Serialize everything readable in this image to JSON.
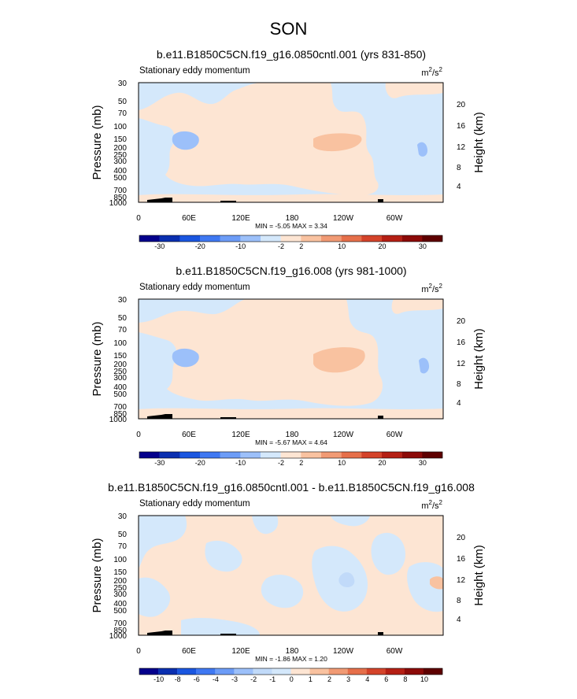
{
  "figure_title": "SON",
  "chart_data": [
    {
      "type": "heatmap",
      "title": "b.e11.B1850C5CN.f19_g16.0850cntl.001 (yrs 831-850)",
      "subtitle": "Stationary eddy momentum",
      "units_base": "m",
      "units_exp1": "2",
      "units_mid": "/s",
      "units_exp2": "2",
      "ylabel": "Pressure (mb)",
      "ylabel_right": "Height (km)",
      "x_ticks": [
        "0",
        "60E",
        "120E",
        "180",
        "120W",
        "60W"
      ],
      "y_ticks": [
        "30",
        "50",
        "70",
        "100",
        "150",
        "200",
        "250",
        "300",
        "400",
        "500",
        "700",
        "850",
        "1000"
      ],
      "height_ticks": [
        "20",
        "16",
        "12",
        "8",
        "4"
      ],
      "min_label": "MIN =",
      "min_value": "-5.05",
      "max_label": "MAX =",
      "max_value": "3.34",
      "colorbar_labels": [
        "-30",
        "-20",
        "-10",
        "-2",
        "2",
        "10",
        "20",
        "30"
      ],
      "colorbar_colors": [
        "#04008c",
        "#0a2fb0",
        "#1a56e0",
        "#3f78f2",
        "#6c9cf7",
        "#9cc0fa",
        "#d4e8fb",
        "#fde5d3",
        "#f9c2a0",
        "#f19a74",
        "#e66f4a",
        "#d4432a",
        "#b51f14",
        "#8c0a08",
        "#5e0000"
      ]
    },
    {
      "type": "heatmap",
      "title": "b.e11.B1850C5CN.f19_g16.008 (yrs 981-1000)",
      "subtitle": "Stationary eddy momentum",
      "units_base": "m",
      "units_exp1": "2",
      "units_mid": "/s",
      "units_exp2": "2",
      "ylabel": "Pressure (mb)",
      "ylabel_right": "Height (km)",
      "x_ticks": [
        "0",
        "60E",
        "120E",
        "180",
        "120W",
        "60W"
      ],
      "y_ticks": [
        "30",
        "50",
        "70",
        "100",
        "150",
        "200",
        "250",
        "300",
        "400",
        "500",
        "700",
        "850",
        "1000"
      ],
      "height_ticks": [
        "20",
        "16",
        "12",
        "8",
        "4"
      ],
      "min_label": "MIN =",
      "min_value": "-5.67",
      "max_label": "MAX =",
      "max_value": "4.64",
      "colorbar_labels": [
        "-30",
        "-20",
        "-10",
        "-2",
        "2",
        "10",
        "20",
        "30"
      ],
      "colorbar_colors": [
        "#04008c",
        "#0a2fb0",
        "#1a56e0",
        "#3f78f2",
        "#6c9cf7",
        "#9cc0fa",
        "#d4e8fb",
        "#fde5d3",
        "#f9c2a0",
        "#f19a74",
        "#e66f4a",
        "#d4432a",
        "#b51f14",
        "#8c0a08",
        "#5e0000"
      ]
    },
    {
      "type": "heatmap",
      "title": "b.e11.B1850C5CN.f19_g16.0850cntl.001 - b.e11.B1850C5CN.f19_g16.008",
      "subtitle": "Stationary eddy momentum",
      "units_base": "m",
      "units_exp1": "2",
      "units_mid": "/s",
      "units_exp2": "2",
      "ylabel": "Pressure (mb)",
      "ylabel_right": "Height (km)",
      "x_ticks": [
        "0",
        "60E",
        "120E",
        "180",
        "120W",
        "60W"
      ],
      "y_ticks": [
        "30",
        "50",
        "70",
        "100",
        "150",
        "200",
        "250",
        "300",
        "400",
        "500",
        "700",
        "850",
        "1000"
      ],
      "height_ticks": [
        "20",
        "16",
        "12",
        "8",
        "4"
      ],
      "min_label": "MIN =",
      "min_value": "-1.86",
      "max_label": "MAX =",
      "max_value": "1.20",
      "colorbar_labels": [
        "-10",
        "-8",
        "-6",
        "-4",
        "-3",
        "-2",
        "-1",
        "0",
        "1",
        "2",
        "3",
        "4",
        "6",
        "8",
        "10"
      ],
      "colorbar_colors": [
        "#04008c",
        "#0a2fb0",
        "#1a56e0",
        "#3f78f2",
        "#6c9cf7",
        "#9cc0fa",
        "#c1daf9",
        "#d4e8fb",
        "#fde5d3",
        "#f9c2a0",
        "#f19a74",
        "#e66f4a",
        "#d4432a",
        "#b51f14",
        "#8c0a08",
        "#5e0000"
      ]
    }
  ]
}
